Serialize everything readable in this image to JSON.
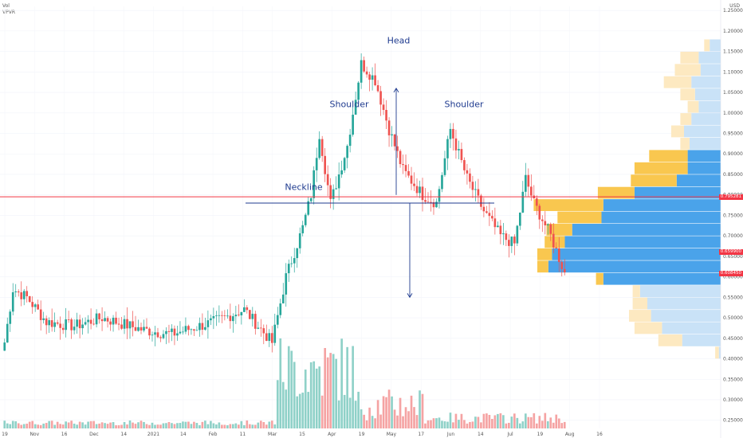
{
  "header": {
    "symbol_label": "Vol",
    "indicator_label": "VPVR",
    "currency": "USD"
  },
  "price_tags": [
    {
      "label": "0.795281",
      "color": "#f23645"
    },
    {
      "label": "0.659900",
      "color": "#f23645"
    },
    {
      "label": "0.608450",
      "color": "#f23645"
    }
  ],
  "chart_data": {
    "type": "candlestick",
    "title": "",
    "price_axis": {
      "ticks": [
        "1.250000",
        "1.200000",
        "1.150000",
        "1.100000",
        "1.050000",
        "1.000000",
        "0.950000",
        "0.900000",
        "0.850000",
        "0.800000",
        "0.750000",
        "0.700000",
        "0.650000",
        "0.600000",
        "0.550000",
        "0.500000",
        "0.450000",
        "0.400000",
        "0.350000",
        "0.300000",
        "0.250000"
      ],
      "range": [
        0.23,
        1.26
      ]
    },
    "time_axis": {
      "ticks": [
        "19",
        "Nov",
        "16",
        "Dec",
        "14",
        "2021",
        "14",
        "Feb",
        "11",
        "Mar",
        "15",
        "Apr",
        "19",
        "May",
        "17",
        "Jun",
        "14",
        "Jul",
        "19",
        "Aug",
        "16"
      ]
    },
    "colors": {
      "up": "#26a69a",
      "down": "#ef5350",
      "volume_up": "#8fd1c8",
      "volume_down": "#f5a3a3",
      "profile_up": "#f9c74f",
      "profile_down": "#4aa3ea",
      "neckline": "#1f3b8f",
      "current_price": "#f23645"
    },
    "key_prices": {
      "first_close": 0.44,
      "left_shoulder_peak": 0.95,
      "head_peak": 1.12,
      "right_shoulder_peak": 0.96,
      "neckline": 0.78,
      "last_close": 0.61,
      "current_price": 0.795281
    },
    "annotations": [
      {
        "label": "Head",
        "price": 1.17
      },
      {
        "label": "Shoulder",
        "price": 1.02
      },
      {
        "label": "Shoulder",
        "price": 1.02
      },
      {
        "label": "Neckline",
        "price": 0.8
      }
    ],
    "projection_arrows": [
      {
        "from": 0.8,
        "to": 1.06,
        "direction": "up"
      },
      {
        "from": 0.78,
        "to": 0.55,
        "direction": "down"
      }
    ],
    "volume_profile": {
      "bins": [
        {
          "low": 1.15,
          "high": 1.18,
          "up": 0.3,
          "down": 0.6
        },
        {
          "low": 1.12,
          "high": 1.15,
          "up": 1.0,
          "down": 1.2
        },
        {
          "low": 1.09,
          "high": 1.12,
          "up": 1.4,
          "down": 1.1
        },
        {
          "low": 1.06,
          "high": 1.09,
          "up": 1.5,
          "down": 1.6
        },
        {
          "low": 1.03,
          "high": 1.06,
          "up": 0.8,
          "down": 1.4
        },
        {
          "low": 1.0,
          "high": 1.03,
          "up": 0.6,
          "down": 1.2
        },
        {
          "low": 0.97,
          "high": 1.0,
          "up": 0.6,
          "down": 1.6
        },
        {
          "low": 0.94,
          "high": 0.97,
          "up": 0.7,
          "down": 2.0
        },
        {
          "low": 0.91,
          "high": 0.94,
          "up": 0.5,
          "down": 1.7
        },
        {
          "low": 0.88,
          "high": 0.91,
          "up": 2.1,
          "down": 1.8
        },
        {
          "low": 0.85,
          "high": 0.88,
          "up": 2.9,
          "down": 1.8
        },
        {
          "low": 0.82,
          "high": 0.85,
          "up": 2.5,
          "down": 2.4
        },
        {
          "low": 0.79,
          "high": 0.82,
          "up": 2.0,
          "down": 4.7
        },
        {
          "low": 0.76,
          "high": 0.79,
          "up": 3.8,
          "down": 6.4
        },
        {
          "low": 0.73,
          "high": 0.76,
          "up": 2.4,
          "down": 6.5
        },
        {
          "low": 0.7,
          "high": 0.73,
          "up": 1.4,
          "down": 8.1
        },
        {
          "low": 0.67,
          "high": 0.7,
          "up": 1.1,
          "down": 8.5
        },
        {
          "low": 0.64,
          "high": 0.67,
          "up": 0.8,
          "down": 9.2
        },
        {
          "low": 0.61,
          "high": 0.64,
          "up": 0.6,
          "down": 9.4
        },
        {
          "low": 0.58,
          "high": 0.61,
          "up": 0.4,
          "down": 6.4
        },
        {
          "low": 0.55,
          "high": 0.58,
          "up": 0.4,
          "down": 4.4
        },
        {
          "low": 0.52,
          "high": 0.55,
          "up": 0.8,
          "down": 4.0
        },
        {
          "low": 0.49,
          "high": 0.52,
          "up": 1.2,
          "down": 3.8
        },
        {
          "low": 0.46,
          "high": 0.49,
          "up": 1.5,
          "down": 3.2
        },
        {
          "low": 0.43,
          "high": 0.46,
          "up": 1.3,
          "down": 2.1
        },
        {
          "low": 0.4,
          "high": 0.43,
          "up": 0.2,
          "down": 0.1
        }
      ]
    }
  }
}
